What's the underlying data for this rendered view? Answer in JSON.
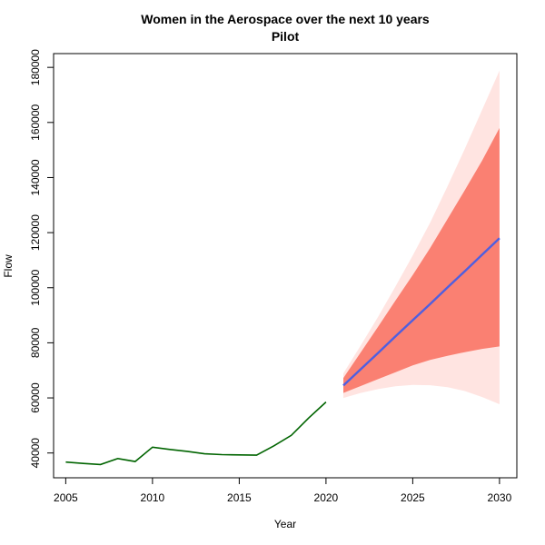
{
  "chart_data": {
    "type": "line",
    "title": "Women in the Aerospace over the next 10 years",
    "subtitle": "Pilot",
    "xlabel": "Year",
    "ylabel": "Flow",
    "xlim": [
      2004.3,
      2031.0
    ],
    "ylim": [
      31000,
      185000
    ],
    "x_ticks": [
      2005,
      2010,
      2015,
      2020,
      2025,
      2030
    ],
    "y_ticks": [
      40000,
      60000,
      80000,
      100000,
      120000,
      140000,
      160000,
      180000
    ],
    "grid": false,
    "series": [
      {
        "role": "historical",
        "x": [
          2005,
          2006,
          2007,
          2008,
          2009,
          2010,
          2011,
          2012,
          2013,
          2014,
          2015,
          2016,
          2017,
          2018,
          2019,
          2020
        ],
        "values": [
          36700,
          36200,
          35800,
          38000,
          36900,
          42100,
          41300,
          40600,
          39700,
          39400,
          39300,
          39200,
          42600,
          46400,
          52700,
          58500
        ]
      },
      {
        "role": "forecast",
        "x": [
          2021,
          2022,
          2023,
          2024,
          2025,
          2026,
          2027,
          2028,
          2029,
          2030
        ],
        "values": [
          64500,
          70400,
          76300,
          82300,
          88200,
          94100,
          100100,
          106000,
          112000,
          118000
        ],
        "lower80": [
          61800,
          64300,
          66800,
          69300,
          71800,
          73800,
          75300,
          76600,
          77800,
          78700
        ],
        "upper80": [
          67200,
          76500,
          85800,
          95300,
          104600,
          114400,
          124900,
          135400,
          146200,
          158000
        ],
        "lower95": [
          60000,
          61800,
          63200,
          64200,
          64700,
          64600,
          63900,
          62500,
          60300,
          57700
        ],
        "upper95": [
          68900,
          79000,
          89400,
          100400,
          111700,
          123600,
          136800,
          150400,
          164600,
          178800
        ]
      }
    ],
    "colors": {
      "historical": "#006400",
      "forecast": "#4f5fe0",
      "band80": "#fa8072",
      "band95": "#ffe4e1",
      "axis": "#000000"
    }
  }
}
